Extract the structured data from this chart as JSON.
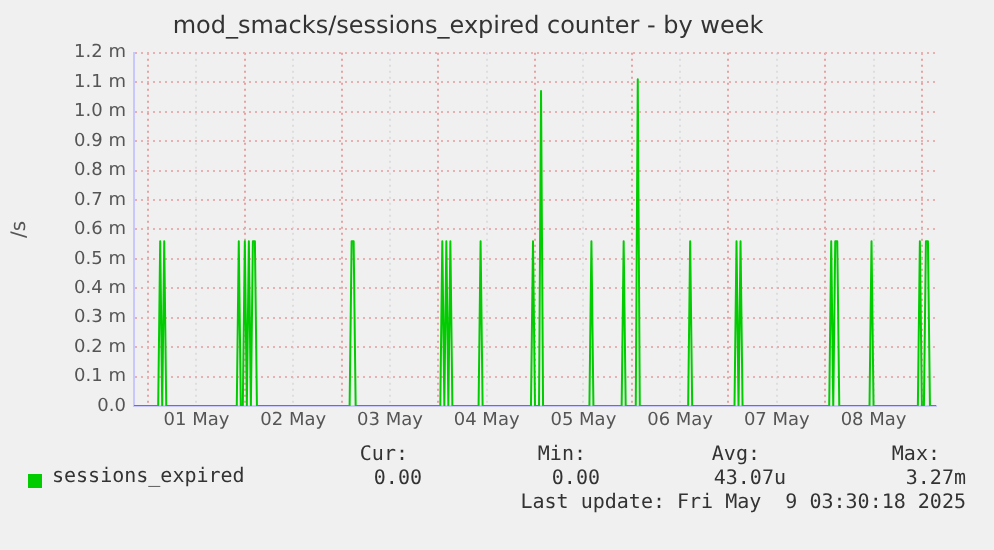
{
  "chart_data": {
    "type": "line",
    "title": "mod_smacks/sessions_expired counter - by week",
    "ylabel": "/s",
    "xlim": [
      "2025-04-30T20:30",
      "2025-05-09T03:30"
    ],
    "xticks": [
      {
        "value": "2025-05-01T00:00",
        "label": null
      },
      {
        "value": "2025-05-01T12:00",
        "label": "01 May"
      },
      {
        "value": "2025-05-02T00:00",
        "label": null
      },
      {
        "value": "2025-05-02T12:00",
        "label": "02 May"
      },
      {
        "value": "2025-05-03T00:00",
        "label": null
      },
      {
        "value": "2025-05-03T12:00",
        "label": "03 May"
      },
      {
        "value": "2025-05-04T00:00",
        "label": null
      },
      {
        "value": "2025-05-04T12:00",
        "label": "04 May"
      },
      {
        "value": "2025-05-05T00:00",
        "label": null
      },
      {
        "value": "2025-05-05T12:00",
        "label": "05 May"
      },
      {
        "value": "2025-05-06T00:00",
        "label": null
      },
      {
        "value": "2025-05-06T12:00",
        "label": "06 May"
      },
      {
        "value": "2025-05-07T00:00",
        "label": null
      },
      {
        "value": "2025-05-07T12:00",
        "label": "07 May"
      },
      {
        "value": "2025-05-08T00:00",
        "label": null
      },
      {
        "value": "2025-05-08T12:00",
        "label": "08 May"
      },
      {
        "value": "2025-05-09T00:00",
        "label": null
      }
    ],
    "ylim": [
      0,
      1.2
    ],
    "yticks": [
      {
        "value": 0,
        "label": "0.0"
      },
      {
        "value": 0.1,
        "label": "0.1 m"
      },
      {
        "value": 0.2,
        "label": "0.2 m"
      },
      {
        "value": 0.3,
        "label": "0.3 m"
      },
      {
        "value": 0.4,
        "label": "0.4 m"
      },
      {
        "value": 0.5,
        "label": "0.5 m"
      },
      {
        "value": 0.6,
        "label": "0.6 m"
      },
      {
        "value": 0.7,
        "label": "0.7 m"
      },
      {
        "value": 0.8,
        "label": "0.8 m"
      },
      {
        "value": 0.9,
        "label": "0.9 m"
      },
      {
        "value": 1.0,
        "label": "1.0 m"
      },
      {
        "value": 1.1,
        "label": "1.1 m"
      },
      {
        "value": 1.2,
        "label": "1.2 m"
      }
    ],
    "grid": true,
    "legend": "bottom",
    "marker": "none",
    "line_style": "solid",
    "series": [
      {
        "name": "sessions_expired",
        "color": "#00cc00",
        "x": [
          "2025-04-30T20:30",
          "2025-05-01T02:30",
          "2025-05-01T03:00",
          "2025-05-01T03:30",
          "2025-05-01T04:00",
          "2025-05-01T04:30",
          "2025-05-01T22:00",
          "2025-05-01T22:30",
          "2025-05-01T23:00",
          "2025-05-01T23:30",
          "2025-05-02T00:00",
          "2025-05-02T00:30",
          "2025-05-02T01:00",
          "2025-05-02T01:30",
          "2025-05-02T02:00",
          "2025-05-02T02:30",
          "2025-05-02T03:00",
          "2025-05-03T02:00",
          "2025-05-03T02:30",
          "2025-05-03T03:00",
          "2025-05-03T03:30",
          "2025-05-04T00:30",
          "2025-05-04T01:00",
          "2025-05-04T01:30",
          "2025-05-04T02:00",
          "2025-05-04T02:30",
          "2025-05-04T03:00",
          "2025-05-04T03:30",
          "2025-05-04T10:00",
          "2025-05-04T10:30",
          "2025-05-04T11:00",
          "2025-05-04T23:00",
          "2025-05-04T23:30",
          "2025-05-05T00:00",
          "2025-05-05T01:00",
          "2025-05-05T01:30",
          "2025-05-05T02:00",
          "2025-05-05T13:30",
          "2025-05-05T14:00",
          "2025-05-05T14:30",
          "2025-05-05T21:30",
          "2025-05-05T22:00",
          "2025-05-05T22:30",
          "2025-05-06T01:00",
          "2025-05-06T01:30",
          "2025-05-06T02:00",
          "2025-05-06T14:00",
          "2025-05-06T14:30",
          "2025-05-06T15:00",
          "2025-05-07T01:30",
          "2025-05-07T02:00",
          "2025-05-07T02:30",
          "2025-05-07T03:00",
          "2025-05-07T03:30",
          "2025-05-08T01:00",
          "2025-05-08T01:30",
          "2025-05-08T02:00",
          "2025-05-08T02:30",
          "2025-05-08T03:00",
          "2025-05-08T03:30",
          "2025-05-08T11:00",
          "2025-05-08T11:30",
          "2025-05-08T12:00",
          "2025-05-08T23:00",
          "2025-05-08T23:30",
          "2025-05-09T00:00",
          "2025-05-09T00:30",
          "2025-05-09T01:00",
          "2025-05-09T01:30",
          "2025-05-09T02:00",
          "2025-05-09T03:30"
        ],
        "values": [
          0,
          0,
          0.56,
          0,
          0.56,
          0,
          0,
          0.56,
          0,
          0,
          0.56,
          0,
          0.56,
          0,
          0.56,
          0.56,
          0,
          0,
          0.56,
          0.56,
          0,
          0,
          0.56,
          0,
          0.56,
          0,
          0.56,
          0,
          0,
          0.56,
          0,
          0,
          0.56,
          0,
          0,
          1.07,
          0,
          0,
          0.56,
          0,
          0,
          0.56,
          0,
          0,
          1.11,
          0,
          0,
          0.56,
          0,
          0,
          0.56,
          0,
          0.56,
          0,
          0,
          0.56,
          0,
          0.56,
          0.56,
          0,
          0,
          0.56,
          0,
          0,
          0.56,
          0,
          0,
          0.56,
          0.56,
          0,
          0
        ]
      }
    ],
    "annotations": [
      "Cur:",
      "Min:",
      "Avg:",
      "Max:",
      "0.00",
      "0.00",
      "43.07u",
      "3.27m",
      "Last update: Fri May  9 03:30:18 2025"
    ]
  }
}
